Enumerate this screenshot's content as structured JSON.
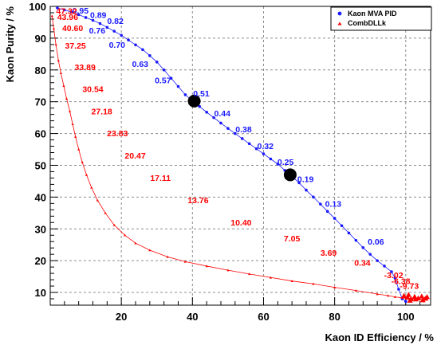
{
  "chart_data": {
    "type": "scatter",
    "xlabel": "Kaon ID Efficiency / %",
    "ylabel": "Kaon Purity / %",
    "xlim": [
      0,
      107
    ],
    "ylim": [
      6,
      100
    ],
    "x_ticks": [
      20,
      40,
      60,
      80,
      100
    ],
    "y_ticks": [
      10,
      20,
      30,
      40,
      50,
      60,
      70,
      80,
      90,
      100
    ],
    "grid": true,
    "legend_position": "top-right",
    "series": [
      {
        "name": "Kaon MVA PID",
        "color": "#1a1aff",
        "marker": "circle",
        "points": [
          [
            2,
            99.5
          ],
          [
            4,
            98.9
          ],
          [
            6,
            98.2
          ],
          [
            8,
            97.4
          ],
          [
            10,
            96.5
          ],
          [
            12,
            95.6
          ],
          [
            14,
            94.6
          ],
          [
            16,
            93.4
          ],
          [
            18,
            92.2
          ],
          [
            20,
            90.9
          ],
          [
            22,
            89.4
          ],
          [
            24,
            87.9
          ],
          [
            26,
            86.4
          ],
          [
            28,
            84.5
          ],
          [
            30,
            82.5
          ],
          [
            32,
            80.0
          ],
          [
            34,
            77.4
          ],
          [
            36,
            74.8
          ],
          [
            38,
            72.2
          ],
          [
            40,
            70.2
          ],
          [
            42,
            68.5
          ],
          [
            44,
            66.7
          ],
          [
            46,
            65.0
          ],
          [
            48,
            63.3
          ],
          [
            50,
            61.6
          ],
          [
            52,
            60.0
          ],
          [
            54,
            58.4
          ],
          [
            56,
            56.8
          ],
          [
            58,
            55.2
          ],
          [
            60,
            53.6
          ],
          [
            62,
            52.0
          ],
          [
            64,
            50.4
          ],
          [
            66,
            48.4
          ],
          [
            68,
            46.5
          ],
          [
            70,
            44.5
          ],
          [
            72,
            42.2
          ],
          [
            74,
            40.0
          ],
          [
            76,
            37.8
          ],
          [
            78,
            35.5
          ],
          [
            80,
            33.3
          ],
          [
            82,
            31.0
          ],
          [
            84,
            28.7
          ],
          [
            86,
            26.4
          ],
          [
            88,
            24.1
          ],
          [
            90,
            22.0
          ],
          [
            92,
            20.0
          ],
          [
            94,
            18.3
          ],
          [
            96,
            16.5
          ],
          [
            97,
            14.5
          ],
          [
            98,
            11.0
          ],
          [
            99,
            8.0
          ],
          [
            100,
            7.2
          ]
        ],
        "markers": [
          [
            40.5,
            70.2
          ],
          [
            67.5,
            47.0
          ]
        ],
        "labels": [
          {
            "text": "0.95",
            "x": 8.5,
            "y": 98.7
          },
          {
            "text": "0.89",
            "x": 13.5,
            "y": 97.4
          },
          {
            "text": "0.82",
            "x": 18.3,
            "y": 95.5
          },
          {
            "text": "0.76",
            "x": 13.2,
            "y": 92.5
          },
          {
            "text": "0.70",
            "x": 18.8,
            "y": 88.0
          },
          {
            "text": "0.63",
            "x": 25.3,
            "y": 82.0
          },
          {
            "text": "0.57",
            "x": 31.7,
            "y": 76.8
          },
          {
            "text": "0.51",
            "x": 42.5,
            "y": 72.7
          },
          {
            "text": "0.44",
            "x": 48.4,
            "y": 66.4
          },
          {
            "text": "0.38",
            "x": 54.4,
            "y": 61.4
          },
          {
            "text": "0.32",
            "x": 60.5,
            "y": 56.1
          },
          {
            "text": "0.25",
            "x": 66.2,
            "y": 51.1
          },
          {
            "text": "0.19",
            "x": 71.8,
            "y": 45.7
          },
          {
            "text": "0.13",
            "x": 79.6,
            "y": 38.0
          },
          {
            "text": "0.06",
            "x": 91.6,
            "y": 26.0
          }
        ]
      },
      {
        "name": "CombDLLk",
        "color": "#ff0000",
        "marker": "triangle",
        "points": [
          [
            0.5,
            97
          ],
          [
            1,
            93
          ],
          [
            1.6,
            88
          ],
          [
            2.3,
            83
          ],
          [
            3,
            79
          ],
          [
            3.8,
            75
          ],
          [
            4.6,
            71
          ],
          [
            5.5,
            67
          ],
          [
            6.3,
            63
          ],
          [
            7.1,
            59
          ],
          [
            8,
            55
          ],
          [
            9,
            51
          ],
          [
            10.2,
            47
          ],
          [
            11.6,
            43
          ],
          [
            13.3,
            39
          ],
          [
            15.5,
            35
          ],
          [
            18,
            31.2
          ],
          [
            21,
            28
          ],
          [
            24,
            25.5
          ],
          [
            28,
            23.3
          ],
          [
            33,
            21.2
          ],
          [
            38,
            19.7
          ],
          [
            44,
            18.3
          ],
          [
            50,
            17.0
          ],
          [
            56,
            15.8
          ],
          [
            62,
            14.7
          ],
          [
            68,
            13.6
          ],
          [
            74,
            12.7
          ],
          [
            80,
            11.6
          ],
          [
            86,
            10.6
          ],
          [
            92,
            9.5
          ],
          [
            95,
            9.0
          ],
          [
            97,
            8.6
          ],
          [
            99,
            8.3
          ],
          [
            101,
            8.0
          ],
          [
            103,
            7.9
          ],
          [
            105,
            7.8
          ],
          [
            106,
            7.8
          ]
        ],
        "cluster_points": [
          [
            99.5,
            9.0
          ],
          [
            100.5,
            8.5
          ],
          [
            101.5,
            8.0
          ],
          [
            102.5,
            8.7
          ],
          [
            103.5,
            8.2
          ],
          [
            104.5,
            8.8
          ],
          [
            105.5,
            8.1
          ],
          [
            106,
            8.6
          ],
          [
            100.8,
            9.3
          ],
          [
            102.8,
            7.9
          ],
          [
            104.8,
            7.6
          ],
          [
            101.2,
            7.5
          ]
        ],
        "labels": [
          {
            "text": "47.32",
            "x": 4.6,
            "y": 98.6
          },
          {
            "text": "43.96",
            "x": 4.9,
            "y": 96.7
          },
          {
            "text": "40.60",
            "x": 6.3,
            "y": 93.2
          },
          {
            "text": "37.25",
            "x": 7.1,
            "y": 87.7
          },
          {
            "text": "33.89",
            "x": 9.8,
            "y": 81.0
          },
          {
            "text": "30.54",
            "x": 12.0,
            "y": 74.1
          },
          {
            "text": "27.18",
            "x": 14.5,
            "y": 67.1
          },
          {
            "text": "23.83",
            "x": 18.9,
            "y": 60.1
          },
          {
            "text": "20.47",
            "x": 23.9,
            "y": 53.1
          },
          {
            "text": "17.11",
            "x": 31.0,
            "y": 46.1
          },
          {
            "text": "13.76",
            "x": 41.6,
            "y": 39.1
          },
          {
            "text": "10.40",
            "x": 53.7,
            "y": 32.1
          },
          {
            "text": "7.05",
            "x": 68.0,
            "y": 27.0
          },
          {
            "text": "3.69",
            "x": 78.3,
            "y": 22.6
          },
          {
            "text": "0.34",
            "x": 87.8,
            "y": 19.4
          },
          {
            "text": "-3.02",
            "x": 96.6,
            "y": 15.5
          },
          {
            "text": "-6.38",
            "x": 98.6,
            "y": 13.6
          },
          {
            "text": "-9.73",
            "x": 101.0,
            "y": 12.2
          }
        ]
      }
    ]
  }
}
